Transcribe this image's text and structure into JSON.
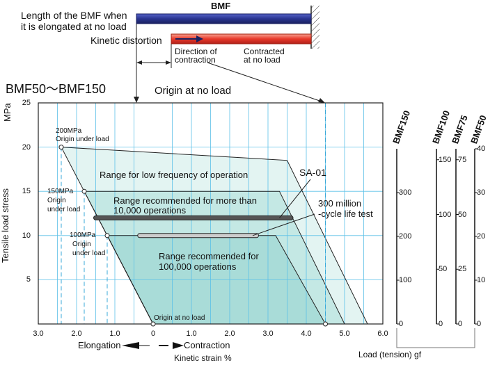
{
  "header": {
    "bmf_title": "BMF",
    "elongated_label_1": "Length of the BMF when",
    "elongated_label_2": "it is elongated at no load",
    "kinetic_distortion": "Kinetic distortion",
    "direction_1": "Direction of",
    "direction_2": "contraction",
    "contracted_1": "Contracted",
    "contracted_2": "at no load",
    "blue_bar_color": "#2a3590",
    "red_bar_color": "#e8392a"
  },
  "chart": {
    "series_title": "BMF50～BMF150",
    "origin_top": "Origin at no load",
    "origin_bottom": "Origin at no load",
    "ylabel": "Tensile load stress",
    "yunit": "MPa",
    "x_ticks": [
      "3.0",
      "2.0",
      "1.0",
      "0",
      "1.0",
      "2.0",
      "3.0",
      "4.0",
      "5.0",
      "6.0"
    ],
    "y_ticks": [
      "25",
      "20",
      "15",
      "10",
      "5"
    ],
    "xlabel": "Kinetic strain  %",
    "elongation": "Elongation",
    "contraction": "Contraction",
    "point_200_1": "200MPa",
    "point_200_2": "Origin  under load",
    "point_150_1": "150MPa",
    "point_150_2": "Origin",
    "point_150_3": "under load",
    "point_100_1": "100MPa",
    "point_100_2": "Origin",
    "point_100_3": "under  load",
    "region_low": "Range for low frequency of operation",
    "region_10k_1": "Range recommended for more than",
    "region_10k_2": "10,000 operations",
    "region_100k_1": "Range recommended for",
    "region_100k_2": "100,000 operations",
    "sa01": "SA-01",
    "life_test_1": "300 million",
    "life_test_2": "-cycle life test"
  },
  "chart_data": {
    "type": "area",
    "x_range": [
      -3.0,
      6.0
    ],
    "y_range": [
      0,
      25
    ],
    "regions": [
      {
        "name": "Range for low frequency of operation",
        "points": [
          [
            -2.4,
            20
          ],
          [
            3.5,
            18.5
          ],
          [
            5.6,
            0
          ],
          [
            0,
            0
          ]
        ],
        "color": "#e3f4f2"
      },
      {
        "name": "Range recommended for more than 10,000 operations",
        "points": [
          [
            -1.8,
            15
          ],
          [
            3.3,
            15
          ],
          [
            5.0,
            0
          ],
          [
            0,
            0
          ]
        ],
        "color": "#c4e8e4"
      },
      {
        "name": "Range recommended for 100,000 operations",
        "points": [
          [
            -1.2,
            10
          ],
          [
            3.2,
            10
          ],
          [
            4.5,
            0
          ],
          [
            0,
            0
          ]
        ],
        "color": "#a9dcd8"
      }
    ],
    "bars": [
      {
        "name": "SA-01",
        "x_start": -1.5,
        "x_end": 3.6,
        "y": 12,
        "color": "#555555"
      },
      {
        "name": "300 million -cycle life test",
        "x_start": -0.35,
        "x_end": 2.7,
        "y": 10,
        "color": "#cccccc"
      }
    ],
    "points": [
      {
        "x": -2.4,
        "y": 20,
        "label": "200MPa Origin under load"
      },
      {
        "x": -1.8,
        "y": 15,
        "label": "150MPa Origin under load"
      },
      {
        "x": -1.2,
        "y": 10,
        "label": "100MPa Origin under load"
      },
      {
        "x": 0,
        "y": 0,
        "label": "Origin at no load"
      },
      {
        "x": 4.5,
        "y": 0,
        "label": "Origin at no load"
      }
    ],
    "grid": true
  },
  "scales": {
    "title": "Load (tension) gf",
    "axes": [
      {
        "name": "BMF150",
        "ticks": [
          {
            "v": 0,
            "t": "0"
          },
          {
            "v": 100,
            "t": "100"
          },
          {
            "v": 200,
            "t": "200"
          },
          {
            "v": 300,
            "t": "300"
          }
        ],
        "max": 400
      },
      {
        "name": "BMF100",
        "ticks": [
          {
            "v": 0,
            "t": "0"
          },
          {
            "v": 50,
            "t": "50"
          },
          {
            "v": 100,
            "t": "100"
          },
          {
            "v": 150,
            "t": "150"
          }
        ],
        "max": 160
      },
      {
        "name": "BMF75",
        "ticks": [
          {
            "v": 0,
            "t": "0"
          },
          {
            "v": 25,
            "t": "25"
          },
          {
            "v": 50,
            "t": "50"
          },
          {
            "v": 75,
            "t": "75"
          }
        ],
        "max": 80
      },
      {
        "name": "BMF50",
        "ticks": [
          {
            "v": 0,
            "t": "0"
          },
          {
            "v": 10,
            "t": "10"
          },
          {
            "v": 20,
            "t": "20"
          },
          {
            "v": 30,
            "t": "30"
          },
          {
            "v": 40,
            "t": "40"
          }
        ],
        "max": 40
      }
    ]
  }
}
